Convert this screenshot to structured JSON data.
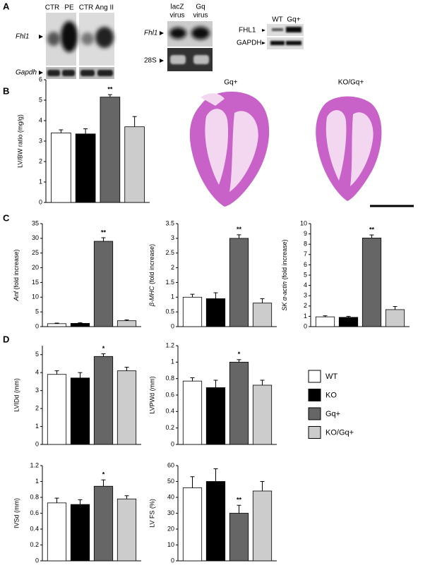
{
  "panels": {
    "a": "A",
    "b": "B",
    "c": "C",
    "d": "D"
  },
  "blots": {
    "lanes": [
      "CTR",
      "PE",
      "CTR",
      "Ang II"
    ],
    "fhl1": "Fhl1",
    "gapdh": "Gapdh",
    "virus_lanes": [
      [
        "lacZ",
        "virus"
      ],
      [
        "Gq",
        "virus"
      ]
    ],
    "fhl1_virus": "Fhl1",
    "rrna": "28S",
    "wb_lanes": [
      "WT",
      "Gq+"
    ],
    "fhl1_protein": "FHL1",
    "gapdh_protein": "GAPDH"
  },
  "histology": {
    "labels": [
      "Gq+",
      "KO/Gq+"
    ]
  },
  "legend": [
    {
      "name": "WT",
      "color": "#ffffff"
    },
    {
      "name": "KO",
      "color": "#000000"
    },
    {
      "name": "Gq+",
      "color": "#666666"
    },
    {
      "name": "KO/Gq+",
      "color": "#cccccc"
    }
  ],
  "chart_data": [
    {
      "type": "bar",
      "ylabel": "LV/BW ratio (mg/g)",
      "values": [
        3.4,
        3.35,
        5.15,
        3.7
      ],
      "errors": [
        0.15,
        0.25,
        0.12,
        0.5
      ],
      "significance": [
        null,
        null,
        "**",
        null
      ],
      "ylim": [
        0,
        6
      ],
      "yticks": [
        0,
        1,
        2,
        3,
        4,
        5,
        6
      ]
    },
    {
      "type": "bar",
      "ylabel": [
        {
          "text": "Anf",
          "italic": true
        },
        {
          "text": " (fold increase)"
        }
      ],
      "values": [
        1,
        1.1,
        29,
        2
      ],
      "errors": [
        0.2,
        0.2,
        1.2,
        0.3
      ],
      "significance": [
        null,
        null,
        "**",
        null
      ],
      "ylim": [
        0,
        35
      ],
      "yticks": [
        0,
        5,
        10,
        15,
        20,
        25,
        30,
        35
      ]
    },
    {
      "type": "bar",
      "ylabel": [
        {
          "text": "β-MHC",
          "italic": true
        },
        {
          "text": " (fold increase)"
        }
      ],
      "values": [
        1,
        0.95,
        3,
        0.8
      ],
      "errors": [
        0.1,
        0.2,
        0.12,
        0.15
      ],
      "significance": [
        null,
        null,
        "**",
        null
      ],
      "ylim": [
        0,
        3.5
      ],
      "yticks": [
        0,
        0.5,
        1,
        1.5,
        2,
        2.5,
        3,
        3.5
      ]
    },
    {
      "type": "bar",
      "ylabel": [
        {
          "text": "SK α-actin",
          "italic": true
        },
        {
          "text": " (fold increase)"
        }
      ],
      "values": [
        0.95,
        0.9,
        8.6,
        1.65
      ],
      "errors": [
        0.1,
        0.1,
        0.3,
        0.3
      ],
      "significance": [
        null,
        null,
        "**",
        null
      ],
      "ylim": [
        0,
        10
      ],
      "yticks": [
        0,
        1,
        2,
        3,
        4,
        5,
        6,
        7,
        8,
        9,
        10
      ]
    },
    {
      "type": "bar",
      "ylabel": "LVIDd (mm)",
      "values": [
        3.9,
        3.7,
        4.9,
        4.1
      ],
      "errors": [
        0.2,
        0.3,
        0.15,
        0.2
      ],
      "significance": [
        null,
        null,
        "*",
        null
      ],
      "ylim": [
        0,
        5.5
      ],
      "yticks": [
        0,
        1,
        2,
        3,
        4,
        5
      ]
    },
    {
      "type": "bar",
      "ylabel": "LVPWd (mm)",
      "values": [
        0.77,
        0.69,
        1.0,
        0.72
      ],
      "errors": [
        0.04,
        0.09,
        0.03,
        0.06
      ],
      "significance": [
        null,
        null,
        "*",
        null
      ],
      "ylim": [
        0,
        1.2
      ],
      "yticks": [
        0,
        0.2,
        0.4,
        0.6,
        0.8,
        1,
        1.2
      ]
    },
    {
      "type": "bar",
      "ylabel": "IVSd (mm)",
      "values": [
        0.73,
        0.71,
        0.94,
        0.78
      ],
      "errors": [
        0.06,
        0.06,
        0.08,
        0.04
      ],
      "significance": [
        null,
        null,
        "*",
        null
      ],
      "ylim": [
        0,
        1.2
      ],
      "yticks": [
        0,
        0.2,
        0.4,
        0.6,
        0.8,
        1,
        1.2
      ]
    },
    {
      "type": "bar",
      "ylabel": "LV FS (%)",
      "values": [
        46,
        50,
        30,
        44
      ],
      "errors": [
        7,
        8,
        5,
        6
      ],
      "significance": [
        null,
        null,
        "**",
        null
      ],
      "ylim": [
        0,
        60
      ],
      "yticks": [
        0,
        10,
        20,
        30,
        40,
        50,
        60
      ]
    }
  ]
}
